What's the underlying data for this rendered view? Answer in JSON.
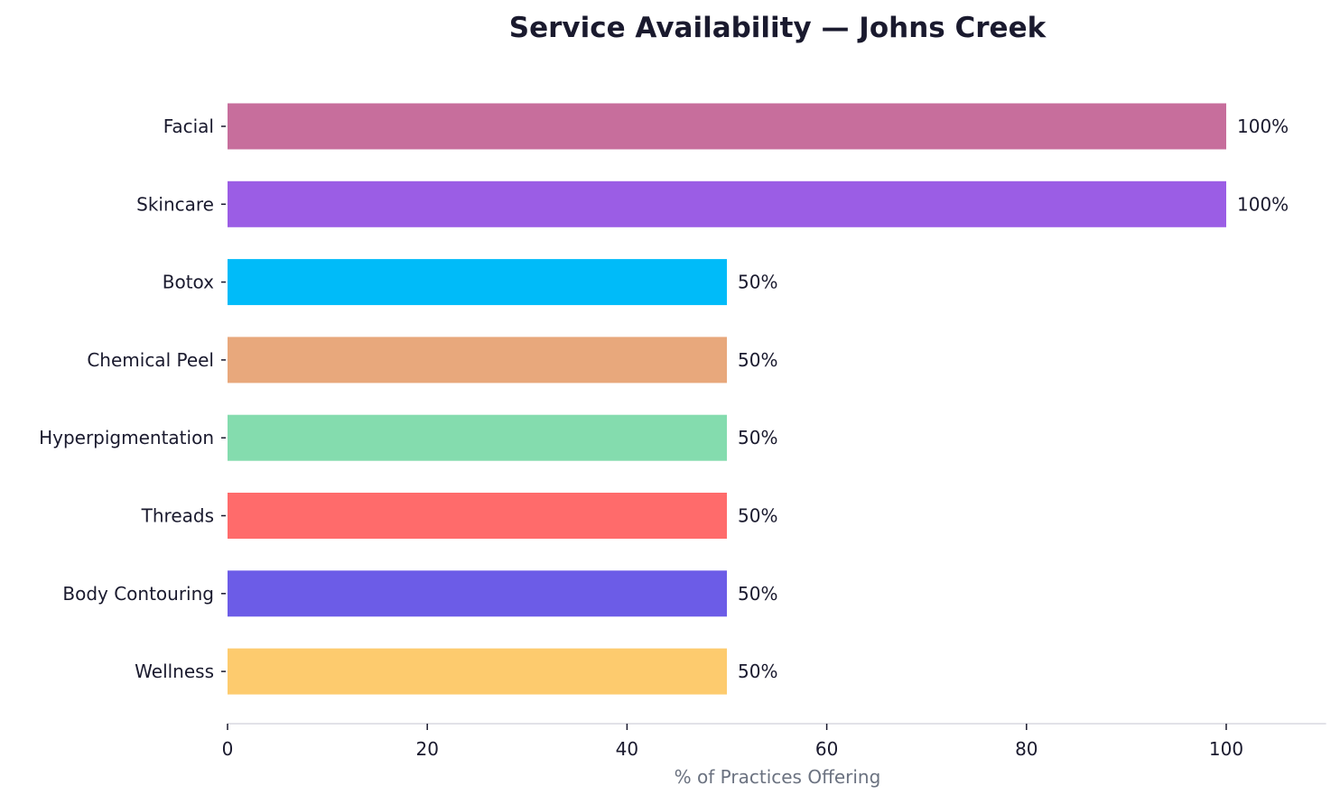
{
  "chart_data": {
    "type": "bar",
    "orientation": "horizontal",
    "title": "Service Availability — Johns Creek",
    "xlabel": "% of Practices Offering",
    "ylabel": "",
    "xlim": [
      0,
      110
    ],
    "xticks": [
      0,
      20,
      40,
      60,
      80,
      100
    ],
    "grid": false,
    "categories": [
      "Facial",
      "Skincare",
      "Botox",
      "Chemical Peel",
      "Hyperpigmentation",
      "Threads",
      "Body Contouring",
      "Wellness"
    ],
    "values": [
      100,
      100,
      50,
      50,
      50,
      50,
      50,
      50
    ],
    "data_labels": [
      "100%",
      "100%",
      "50%",
      "50%",
      "50%",
      "50%",
      "50%",
      "50%"
    ],
    "colors": [
      "#c76e9c",
      "#9b5de5",
      "#00bbf9",
      "#e8a87c",
      "#84dcae",
      "#ff6b6b",
      "#6c5ce7",
      "#fdcb6e"
    ],
    "text_color": "#1a1a2e",
    "xlabel_color": "#6b7280",
    "spine_color": "#e2e2e8"
  }
}
